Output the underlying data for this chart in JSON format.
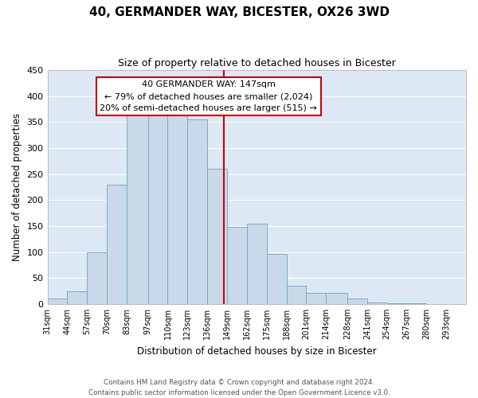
{
  "title": "40, GERMANDER WAY, BICESTER, OX26 3WD",
  "subtitle": "Size of property relative to detached houses in Bicester",
  "xlabel": "Distribution of detached houses by size in Bicester",
  "ylabel": "Number of detached properties",
  "bar_labels": [
    "31sqm",
    "44sqm",
    "57sqm",
    "70sqm",
    "83sqm",
    "97sqm",
    "110sqm",
    "123sqm",
    "136sqm",
    "149sqm",
    "162sqm",
    "175sqm",
    "188sqm",
    "201sqm",
    "214sqm",
    "228sqm",
    "241sqm",
    "254sqm",
    "267sqm",
    "280sqm",
    "293sqm"
  ],
  "bar_heights": [
    10,
    25,
    100,
    230,
    365,
    370,
    370,
    355,
    260,
    148,
    155,
    96,
    35,
    22,
    22,
    10,
    3,
    2,
    2,
    0,
    0
  ],
  "bar_edges": [
    31,
    44,
    57,
    70,
    83,
    97,
    110,
    123,
    136,
    149,
    162,
    175,
    188,
    201,
    214,
    228,
    241,
    254,
    267,
    280,
    293
  ],
  "bar_color": "#c9d9ea",
  "bar_edge_color": "#7aaac8",
  "vline_x": 147,
  "vline_color": "#cc0000",
  "ylim": [
    0,
    450
  ],
  "yticks": [
    0,
    50,
    100,
    150,
    200,
    250,
    300,
    350,
    400,
    450
  ],
  "annotation_title": "40 GERMANDER WAY: 147sqm",
  "annotation_line1": "← 79% of detached houses are smaller (2,024)",
  "annotation_line2": "20% of semi-detached houses are larger (515) →",
  "annotation_box_color": "#ffffff",
  "annotation_box_edge": "#cc0000",
  "footer1": "Contains HM Land Registry data © Crown copyright and database right 2024.",
  "footer2": "Contains public sector information licensed under the Open Government Licence v3.0.",
  "bg_color": "#dce9f5",
  "grid_color": "#ffffff"
}
